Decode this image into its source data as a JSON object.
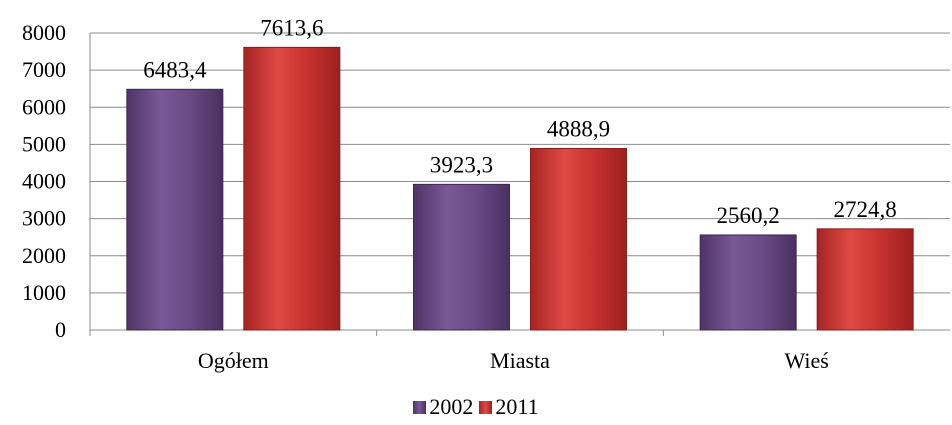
{
  "chart_data": {
    "type": "bar",
    "title": "",
    "xlabel": "",
    "ylabel": "",
    "categories": [
      "Ogółem",
      "Miasta",
      "Wieś"
    ],
    "series": [
      {
        "name": "2002",
        "values": [
          6483.4,
          3923.3,
          2560.2
        ],
        "labels": [
          "6483,4",
          "3923,3",
          "2560,2"
        ],
        "color": "#6b4a87"
      },
      {
        "name": "2011",
        "values": [
          7613.6,
          4888.9,
          2724.8
        ],
        "labels": [
          "7613,6",
          "4888,9",
          "2724,8"
        ],
        "color": "#c8322f"
      }
    ],
    "ylim": [
      0,
      8000
    ],
    "yticks": [
      0,
      1000,
      2000,
      3000,
      4000,
      5000,
      6000,
      7000,
      8000
    ],
    "grid": true,
    "legend_position": "bottom"
  }
}
